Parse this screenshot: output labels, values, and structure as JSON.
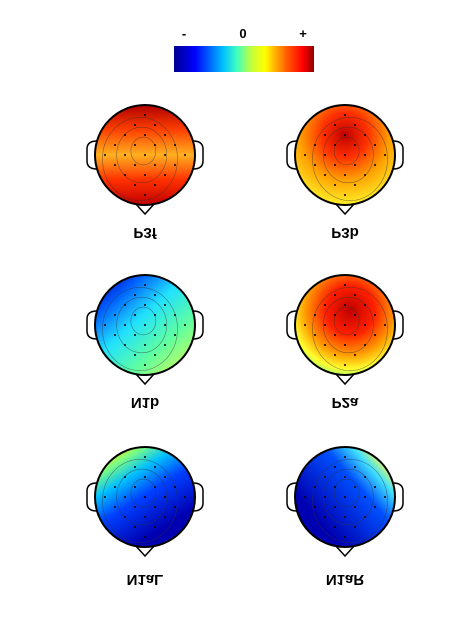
{
  "colorbar": {
    "labels": [
      "-",
      "0",
      "+"
    ]
  },
  "maps": [
    {
      "label": "P3f"
    },
    {
      "label": "P3b"
    },
    {
      "label": "N1b"
    },
    {
      "label": "P2a"
    },
    {
      "label": "N1aL"
    },
    {
      "label": "N1aR"
    }
  ]
}
